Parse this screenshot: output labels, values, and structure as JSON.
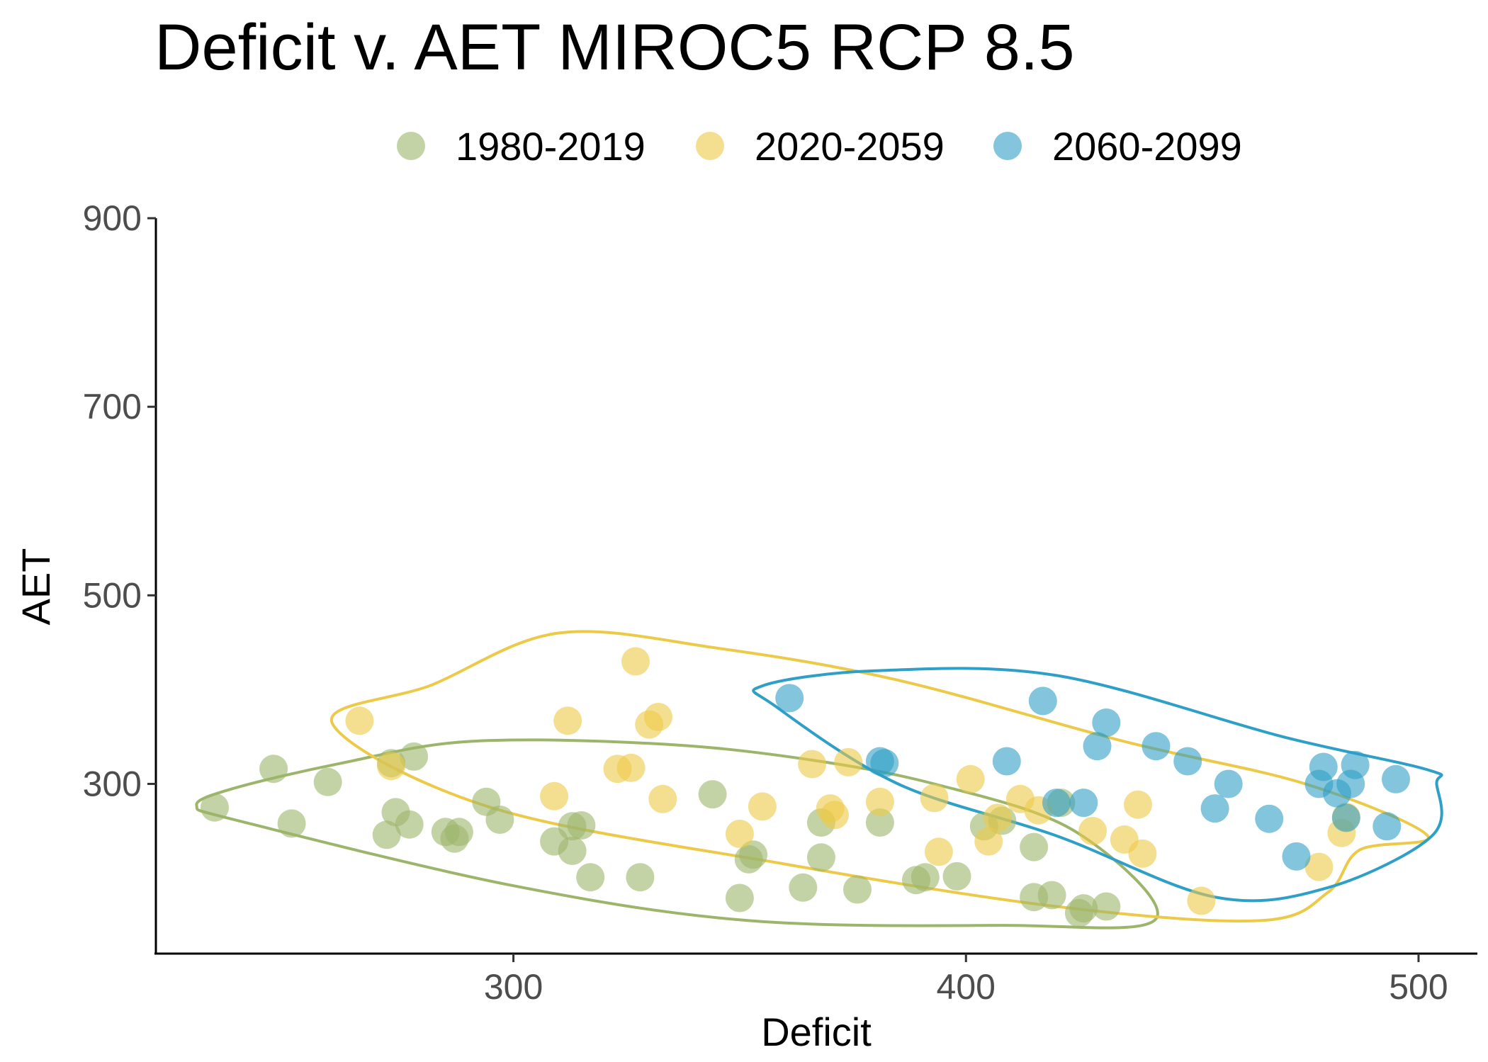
{
  "chart_data": {
    "type": "scatter",
    "title": "Deficit v. AET MIROC5 RCP 8.5",
    "xlabel": "Deficit",
    "ylabel": "AET",
    "xlim": [
      221,
      513
    ],
    "ylim": [
      120,
      900
    ],
    "x_ticks": [
      300,
      400,
      500
    ],
    "y_ticks": [
      300,
      500,
      700,
      900
    ],
    "grid": false,
    "legend_position": "top",
    "series": [
      {
        "name": "1980-2019",
        "color": "#9CB56A",
        "points": [
          [
            234,
            275
          ],
          [
            247,
            316
          ],
          [
            251,
            258
          ],
          [
            259,
            302
          ],
          [
            272,
            246
          ],
          [
            273,
            322
          ],
          [
            274,
            270
          ],
          [
            277,
            257
          ],
          [
            278,
            329
          ],
          [
            285,
            249
          ],
          [
            287,
            242
          ],
          [
            288,
            249
          ],
          [
            294,
            281
          ],
          [
            297,
            262
          ],
          [
            309,
            239
          ],
          [
            313,
            255
          ],
          [
            313,
            229
          ],
          [
            315,
            256
          ],
          [
            317,
            201
          ],
          [
            328,
            201
          ],
          [
            344,
            289
          ],
          [
            350,
            179
          ],
          [
            352,
            220
          ],
          [
            353,
            225
          ],
          [
            364,
            190
          ],
          [
            368,
            259
          ],
          [
            368,
            222
          ],
          [
            376,
            188
          ],
          [
            381,
            259
          ],
          [
            389,
            198
          ],
          [
            391,
            201
          ],
          [
            398,
            202
          ],
          [
            404,
            255
          ],
          [
            408,
            261
          ],
          [
            415,
            233
          ],
          [
            415,
            180
          ],
          [
            419,
            182
          ],
          [
            421,
            280
          ],
          [
            425,
            163
          ],
          [
            426,
            168
          ],
          [
            431,
            170
          ]
        ],
        "hull": [
          [
            230,
            277
          ],
          [
            238,
            295
          ],
          [
            262,
            322
          ],
          [
            290,
            345
          ],
          [
            330,
            343
          ],
          [
            362,
            328
          ],
          [
            393,
            300
          ],
          [
            424,
            250
          ],
          [
            442,
            157
          ],
          [
            408,
            150
          ],
          [
            352,
            155
          ],
          [
            300,
            192
          ],
          [
            240,
            260
          ]
        ]
      },
      {
        "name": "2020-2059",
        "color": "#EDC948",
        "points": [
          [
            266,
            367
          ],
          [
            273,
            319
          ],
          [
            309,
            287
          ],
          [
            312,
            367
          ],
          [
            323,
            316
          ],
          [
            326,
            317
          ],
          [
            327,
            430
          ],
          [
            330,
            363
          ],
          [
            332,
            371
          ],
          [
            333,
            284
          ],
          [
            350,
            247
          ],
          [
            355,
            276
          ],
          [
            366,
            321
          ],
          [
            370,
            274
          ],
          [
            371,
            267
          ],
          [
            374,
            323
          ],
          [
            381,
            281
          ],
          [
            393,
            285
          ],
          [
            394,
            228
          ],
          [
            401,
            305
          ],
          [
            405,
            239
          ],
          [
            407,
            264
          ],
          [
            412,
            284
          ],
          [
            416,
            272
          ],
          [
            428,
            250
          ],
          [
            435,
            241
          ],
          [
            438,
            278
          ],
          [
            439,
            226
          ],
          [
            452,
            176
          ],
          [
            478,
            212
          ],
          [
            483,
            248
          ],
          [
            484,
            265
          ]
        ],
        "hull": [
          [
            260,
            364
          ],
          [
            282,
            405
          ],
          [
            310,
            460
          ],
          [
            345,
            444
          ],
          [
            385,
            410
          ],
          [
            435,
            345
          ],
          [
            475,
            300
          ],
          [
            502,
            245
          ],
          [
            487,
            230
          ],
          [
            480,
            185
          ],
          [
            465,
            155
          ],
          [
            420,
            170
          ],
          [
            360,
            215
          ],
          [
            295,
            275
          ]
        ]
      },
      {
        "name": "2060-2099",
        "color": "#2E9FC7",
        "points": [
          [
            361,
            391
          ],
          [
            381,
            324
          ],
          [
            382,
            322
          ],
          [
            409,
            324
          ],
          [
            417,
            388
          ],
          [
            420,
            280
          ],
          [
            426,
            280
          ],
          [
            429,
            340
          ],
          [
            431,
            365
          ],
          [
            442,
            340
          ],
          [
            449,
            324
          ],
          [
            455,
            274
          ],
          [
            458,
            300
          ],
          [
            467,
            263
          ],
          [
            473,
            223
          ],
          [
            478,
            300
          ],
          [
            479,
            318
          ],
          [
            482,
            290
          ],
          [
            484,
            264
          ],
          [
            485,
            300
          ],
          [
            486,
            320
          ],
          [
            493,
            255
          ],
          [
            495,
            305
          ]
        ],
        "hull": [
          [
            355,
            404
          ],
          [
            380,
            420
          ],
          [
            420,
            415
          ],
          [
            470,
            350
          ],
          [
            502,
            315
          ],
          [
            504,
            300
          ],
          [
            503,
            245
          ],
          [
            480,
            190
          ],
          [
            455,
            180
          ],
          [
            420,
            245
          ],
          [
            385,
            300
          ],
          [
            358,
            382
          ]
        ]
      }
    ]
  }
}
